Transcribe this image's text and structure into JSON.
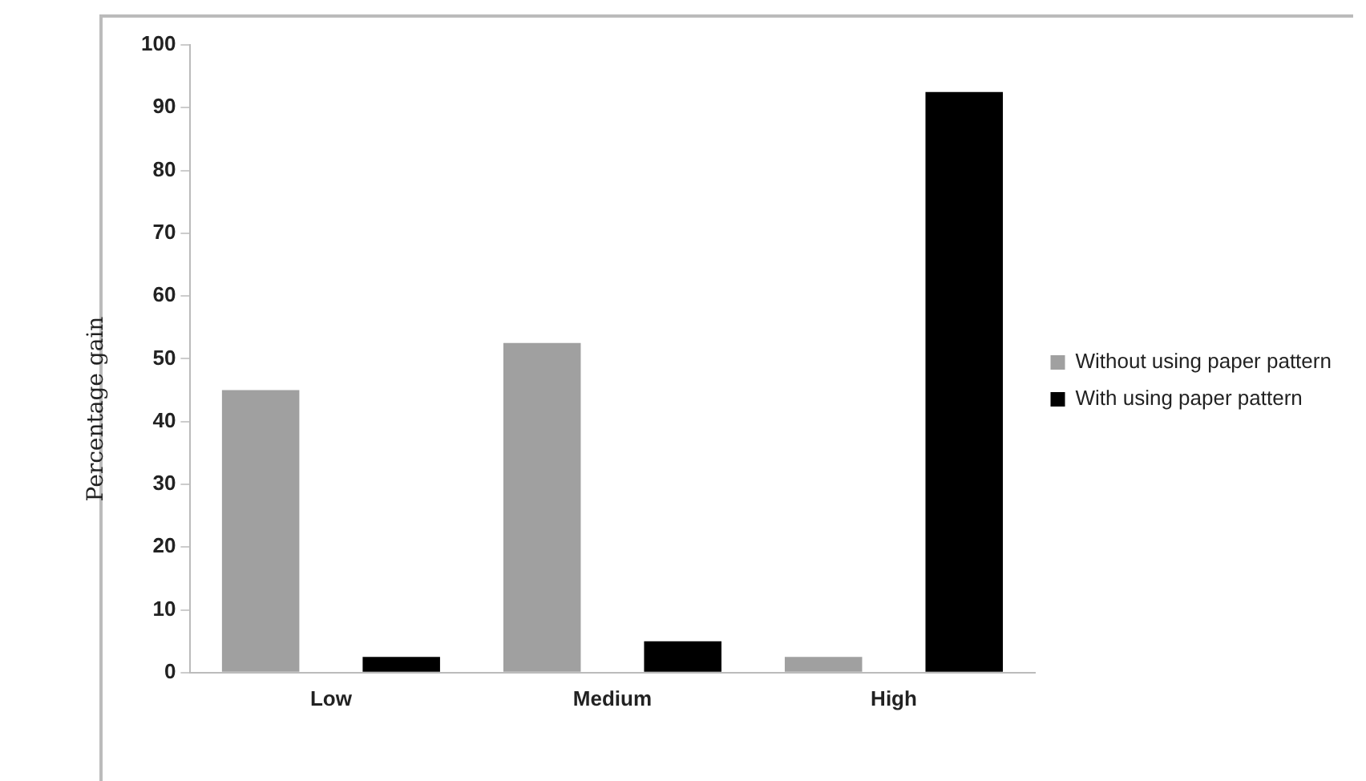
{
  "chart_data": {
    "type": "bar",
    "ylabel": "Percentage  gain",
    "categories": [
      "Low",
      "Medium",
      "High"
    ],
    "series": [
      {
        "name": "Without using paper pattern",
        "color": "#a0a0a0",
        "values": [
          45,
          52.5,
          2.5
        ]
      },
      {
        "name": "With using paper pattern",
        "color": "#000000",
        "values": [
          2.5,
          5,
          92.5
        ]
      }
    ],
    "ylim": [
      0,
      100
    ],
    "yticks": [
      0,
      10,
      20,
      30,
      40,
      50,
      60,
      70,
      80,
      90,
      100
    ],
    "grid": false,
    "legend": "right"
  }
}
